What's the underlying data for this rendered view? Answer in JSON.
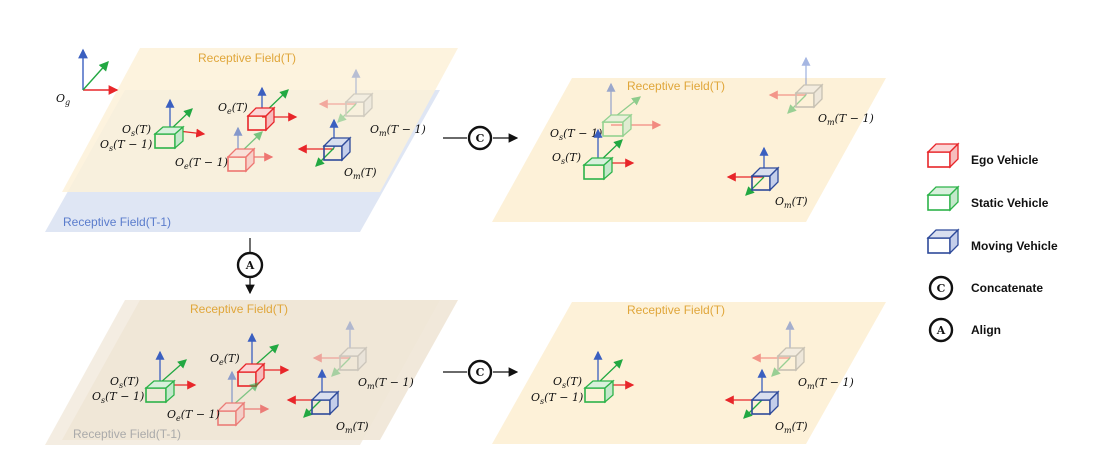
{
  "colors": {
    "ego": "#e8262a",
    "static": "#2db34a",
    "moving": "#2e4a9a",
    "axis_blue": "#3a5fc0",
    "axis_green": "#22a842",
    "axis_red": "#e8262a",
    "plane_yellow": "#fdf1d8",
    "plane_blue": "#dfe6f4",
    "plane_tan": "#efe6d6",
    "label_yellow": "#e0a63a",
    "label_blue": "#5a7ccc",
    "label_gray": "#aaaaaa"
  },
  "global_frame": {
    "label": "O",
    "sub": "g"
  },
  "panels": {
    "top_left": {
      "rf_t": "Receptive Field(T)",
      "rf_t1": "Receptive Field(T-1)",
      "o_e_t": "O",
      "o_e_t_sub": "e",
      "o_e_t_arg": "(T)",
      "o_e_t1": "O",
      "o_e_t1_sub": "e",
      "o_e_t1_arg": "(T − 1)",
      "o_s_t": "O",
      "o_s_t_sub": "s",
      "o_s_t_arg": "(T)",
      "o_s_t1": "O",
      "o_s_t1_sub": "s",
      "o_s_t1_arg": "(T − 1)",
      "o_m_t": "O",
      "o_m_t_sub": "m",
      "o_m_t_arg": "(T)",
      "o_m_t1": "O",
      "o_m_t1_sub": "m",
      "o_m_t1_arg": "(T − 1)"
    },
    "top_right": {
      "rf_t": "Receptive Field(T)",
      "o_s_t1": "O",
      "o_s_t1_sub": "s",
      "o_s_t1_arg": "(T − 1)",
      "o_s_t": "O",
      "o_s_t_sub": "s",
      "o_s_t_arg": "(T)",
      "o_m_t1": "O",
      "o_m_t1_sub": "m",
      "o_m_t1_arg": "(T − 1)",
      "o_m_t": "O",
      "o_m_t_sub": "m",
      "o_m_t_arg": "(T)"
    },
    "bottom_left": {
      "rf_t": "Receptive Field(T)",
      "rf_t1": "Receptive Field(T-1)",
      "o_e_t": "O",
      "o_e_t_sub": "e",
      "o_e_t_arg": "(T)",
      "o_e_t1": "O",
      "o_e_t1_sub": "e",
      "o_e_t1_arg": "(T − 1)",
      "o_s_t": "O",
      "o_s_t_sub": "s",
      "o_s_t_arg": "(T)",
      "o_s_t1": "O",
      "o_s_t1_sub": "s",
      "o_s_t1_arg": "(T − 1)",
      "o_m_t": "O",
      "o_m_t_sub": "m",
      "o_m_t_arg": "(T)",
      "o_m_t1": "O",
      "o_m_t1_sub": "m",
      "o_m_t1_arg": "(T − 1)"
    },
    "bottom_right": {
      "rf_t": "Receptive Field(T)",
      "o_s_t": "O",
      "o_s_t_sub": "s",
      "o_s_t_arg": "(T)",
      "o_s_t1": "O",
      "o_s_t1_sub": "s",
      "o_s_t1_arg": "(T − 1)",
      "o_m_t1": "O",
      "o_m_t1_sub": "m",
      "o_m_t1_arg": "(T − 1)",
      "o_m_t": "O",
      "o_m_t_sub": "m",
      "o_m_t_arg": "(T)"
    }
  },
  "operators": {
    "concat_letter": "C",
    "align_letter": "A"
  },
  "legend": {
    "ego": "Ego Vehicle",
    "static": "Static Vehicle",
    "moving": "Moving Vehicle",
    "concat": "Concatenate",
    "align": "Align",
    "concat_letter": "C",
    "align_letter": "A"
  }
}
